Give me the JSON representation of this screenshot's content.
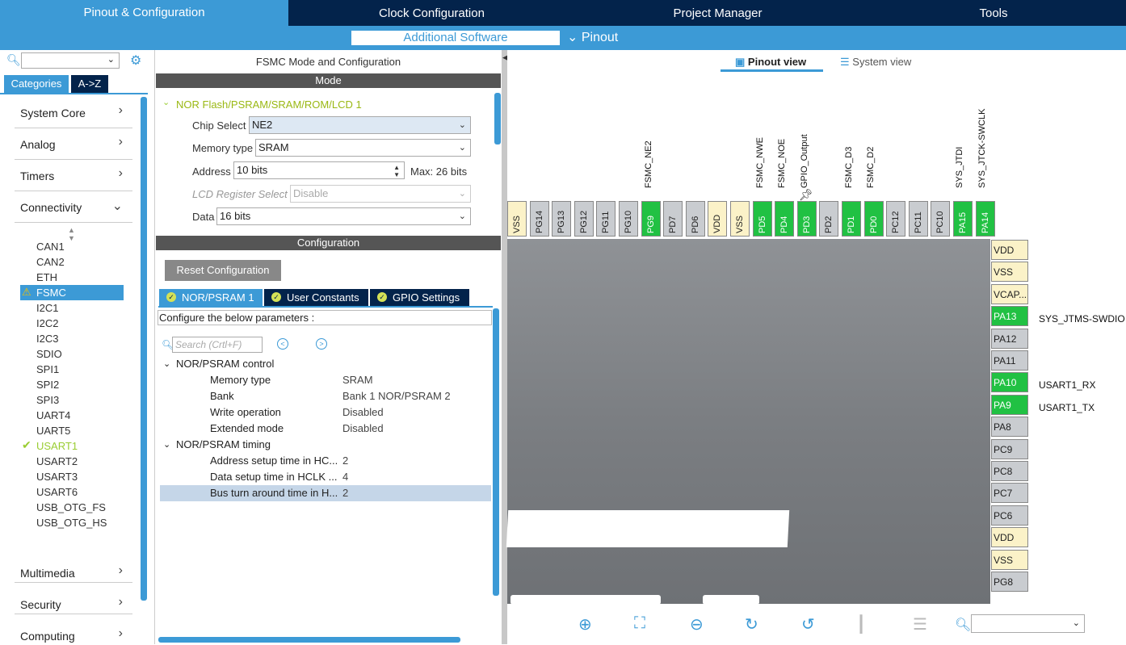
{
  "top_tabs": [
    {
      "label": "Pinout & Configuration",
      "active": true
    },
    {
      "label": "Clock Configuration",
      "active": false
    },
    {
      "label": "Project Manager",
      "active": false
    },
    {
      "label": "Tools",
      "active": false
    }
  ],
  "sub_menu": {
    "additional_software": "Additional Software",
    "pinout": "Pinout"
  },
  "left": {
    "search_value": "",
    "tabs": [
      "Categories",
      "A->Z"
    ],
    "categories": [
      "System Core",
      "Analog",
      "Timers",
      "Connectivity"
    ],
    "peripherals": [
      "CAN1",
      "CAN2",
      "ETH",
      "FSMC",
      "I2C1",
      "I2C2",
      "I2C3",
      "SDIO",
      "SPI1",
      "SPI2",
      "SPI3",
      "UART4",
      "UART5",
      "USART1",
      "USART2",
      "USART3",
      "USART6",
      "USB_OTG_FS",
      "USB_OTG_HS"
    ],
    "bottom_categories": [
      "Multimedia",
      "Security",
      "Computing"
    ]
  },
  "middle": {
    "title": "FSMC Mode and Configuration",
    "mode_header": "Mode",
    "group_title": "NOR Flash/PSRAM/SRAM/ROM/LCD 1",
    "chip_select": {
      "label": "Chip Select",
      "value": "NE2"
    },
    "memory_type": {
      "label": "Memory type",
      "value": "SRAM"
    },
    "address": {
      "label": "Address",
      "value": "10 bits",
      "max": "Max: 26 bits"
    },
    "lcd_reg": {
      "label": "LCD Register Select",
      "value": "Disable"
    },
    "data": {
      "label": "Data",
      "value": "16 bits"
    },
    "config_header": "Configuration",
    "reset_button": "Reset Configuration",
    "config_tabs": [
      "NOR/PSRAM 1",
      "User Constants",
      "GPIO Settings"
    ],
    "configure_text": "Configure the below parameters :",
    "search_placeholder": "Search (Crtl+F)",
    "groups": [
      {
        "title": "NOR/PSRAM control",
        "rows": [
          {
            "label": "Memory type",
            "value": "SRAM"
          },
          {
            "label": "Bank",
            "value": "Bank 1 NOR/PSRAM 2"
          },
          {
            "label": "Write operation",
            "value": "Disabled"
          },
          {
            "label": "Extended mode",
            "value": "Disabled"
          }
        ]
      },
      {
        "title": "NOR/PSRAM timing",
        "rows": [
          {
            "label": "Address setup time in HC...",
            "value": "2"
          },
          {
            "label": "Data setup time in HCLK ...",
            "value": "4"
          },
          {
            "label": "Bus turn around time in H...",
            "value": "2"
          }
        ]
      }
    ]
  },
  "right": {
    "view_tabs": [
      "Pinout view",
      "System view"
    ],
    "top_pins": [
      {
        "name": "VSS",
        "color": "yellow"
      },
      {
        "name": "PG14",
        "color": "gray"
      },
      {
        "name": "PG13",
        "color": "gray"
      },
      {
        "name": "PG12",
        "color": "gray"
      },
      {
        "name": "PG11",
        "color": "gray"
      },
      {
        "name": "PG10",
        "color": "gray"
      },
      {
        "name": "PG9",
        "color": "green"
      },
      {
        "name": "PD7",
        "color": "gray"
      },
      {
        "name": "PD6",
        "color": "gray"
      },
      {
        "name": "VDD",
        "color": "yellow"
      },
      {
        "name": "VSS",
        "color": "yellow"
      },
      {
        "name": "PD5",
        "color": "green"
      },
      {
        "name": "PD4",
        "color": "green"
      },
      {
        "name": "PD3",
        "color": "green"
      },
      {
        "name": "PD2",
        "color": "gray"
      },
      {
        "name": "PD1",
        "color": "green"
      },
      {
        "name": "PD0",
        "color": "green"
      },
      {
        "name": "PC12",
        "color": "gray"
      },
      {
        "name": "PC11",
        "color": "gray"
      },
      {
        "name": "PC10",
        "color": "gray"
      },
      {
        "name": "PA15",
        "color": "green"
      },
      {
        "name": "PA14",
        "color": "green"
      }
    ],
    "top_labels": [
      "FSMC_NE2",
      "FSMC_NWE",
      "FSMC_NOE",
      "GPIO_Output",
      "FSMC_D3",
      "FSMC_D2",
      "SYS_JTDI",
      "SYS_JTCK-SWCLK"
    ],
    "right_pins": [
      {
        "name": "VDD",
        "color": "yellow"
      },
      {
        "name": "VSS",
        "color": "yellow"
      },
      {
        "name": "VCAP...",
        "color": "yellow"
      },
      {
        "name": "PA13",
        "color": "green"
      },
      {
        "name": "PA12",
        "color": "gray"
      },
      {
        "name": "PA11",
        "color": "gray"
      },
      {
        "name": "PA10",
        "color": "green"
      },
      {
        "name": "PA9",
        "color": "green"
      },
      {
        "name": "PA8",
        "color": "gray"
      },
      {
        "name": "PC9",
        "color": "gray"
      },
      {
        "name": "PC8",
        "color": "gray"
      },
      {
        "name": "PC7",
        "color": "gray"
      },
      {
        "name": "PC6",
        "color": "gray"
      },
      {
        "name": "VDD",
        "color": "yellow"
      },
      {
        "name": "VSS",
        "color": "yellow"
      },
      {
        "name": "PG8",
        "color": "gray"
      }
    ],
    "side_labels": [
      "SYS_JTMS-SWDIO",
      "USART1_RX",
      "USART1_TX"
    ]
  }
}
